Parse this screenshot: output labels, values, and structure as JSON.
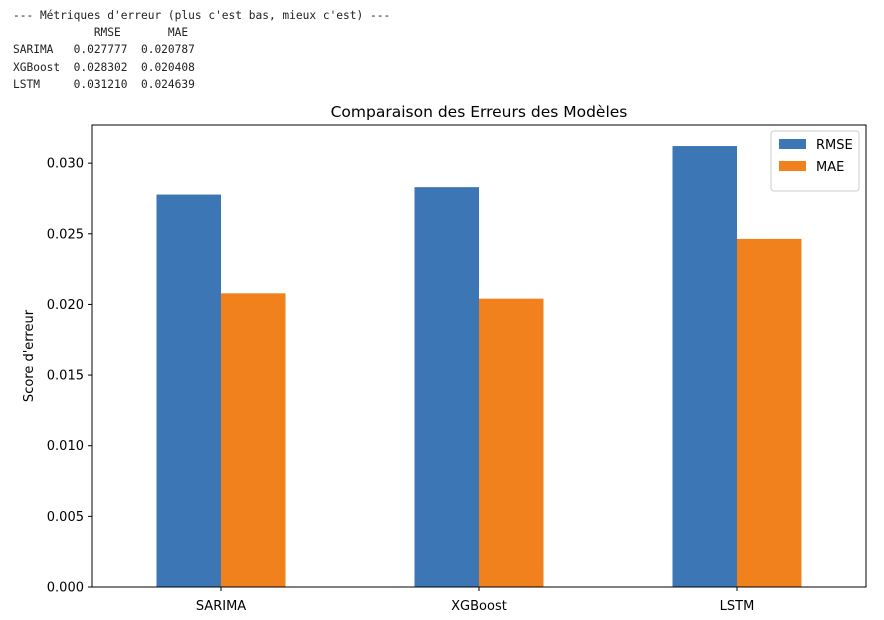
{
  "console_output": {
    "lines": [
      "--- Métriques d'erreur (plus c'est bas, mieux c'est) ---",
      "            RMSE       MAE",
      "SARIMA   0.027777  0.020787",
      "XGBoost  0.028302  0.020408",
      "LSTM     0.031210  0.024639"
    ]
  },
  "chart_data": {
    "type": "bar",
    "title": "Comparaison des Erreurs des Modèles",
    "xlabel": "",
    "ylabel": "Score d'erreur",
    "categories": [
      "SARIMA",
      "XGBoost",
      "LSTM"
    ],
    "series": [
      {
        "name": "RMSE",
        "values": [
          0.027777,
          0.028302,
          0.03121
        ],
        "color": "#3d76b4"
      },
      {
        "name": "MAE",
        "values": [
          0.020787,
          0.020408,
          0.024639
        ],
        "color": "#f0811c"
      }
    ],
    "ylim": [
      0,
      0.0327
    ],
    "yticks": [
      0.0,
      0.005,
      0.01,
      0.015,
      0.02,
      0.025,
      0.03
    ],
    "ytick_labels": [
      "0.000",
      "0.005",
      "0.010",
      "0.015",
      "0.020",
      "0.025",
      "0.030"
    ],
    "grid": false,
    "legend_position": "top-right"
  }
}
